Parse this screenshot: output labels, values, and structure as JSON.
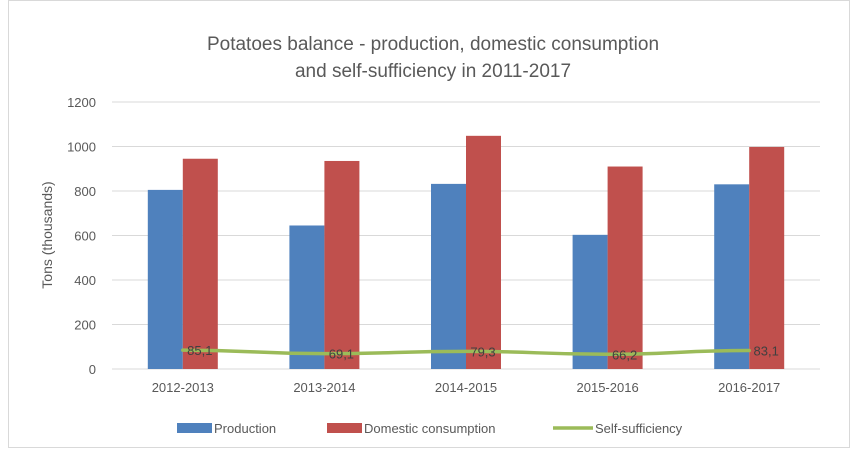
{
  "chart_data": {
    "type": "bar",
    "title_lines": [
      "Potatoes balance - production, domestic consumption",
      "and self-sufficiency in 2011-2017"
    ],
    "ylabel": "Tons (thousands)",
    "xlabel": "",
    "ylim": [
      0,
      1200
    ],
    "yticks": [
      "0",
      "200",
      "400",
      "600",
      "800",
      "1000",
      "1200"
    ],
    "categories": [
      "2012-2013",
      "2013-2014",
      "2014-2015",
      "2015-2016",
      "2016-2017"
    ],
    "series": [
      {
        "name": "Production",
        "type": "bar",
        "color": "#4f81bd",
        "values": [
          805,
          645,
          832,
          603,
          830
        ]
      },
      {
        "name": "Domestic consumption",
        "type": "bar",
        "color": "#c0504d",
        "values": [
          945,
          935,
          1048,
          910,
          998
        ]
      },
      {
        "name": "Self-sufficiency",
        "type": "line",
        "color": "#9bbb59",
        "values": [
          85.1,
          69.1,
          79.3,
          66.2,
          83.1
        ],
        "labels": [
          "85,1",
          "69,1",
          "79,3",
          "66,2",
          "83,1"
        ]
      }
    ],
    "grid": true,
    "legend_position": "bottom"
  }
}
